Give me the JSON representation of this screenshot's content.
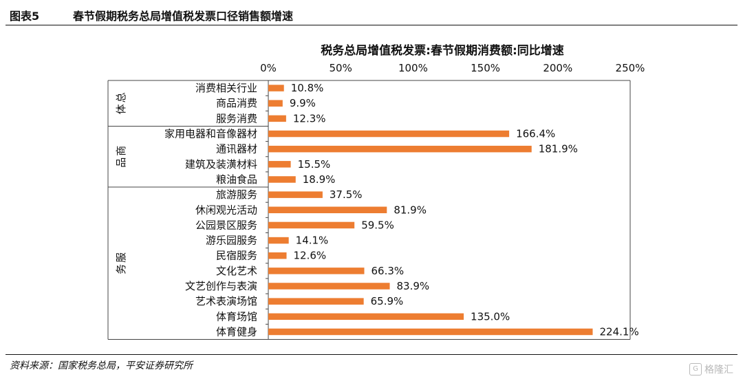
{
  "figure": {
    "number": "图表5",
    "title": "春节假期税务总局增值税发票口径销售额增速",
    "source": "资料来源：国家税务总局，平安证券研究所",
    "watermark": "格隆汇",
    "watermark_icon": "G"
  },
  "chart_data": {
    "type": "bar",
    "orientation": "horizontal",
    "title": "税务总局增值税发票:春节假期消费额:同比增速",
    "xlabel": "",
    "ylabel": "",
    "xlim": [
      0,
      250
    ],
    "x_ticks": [
      "0%",
      "50%",
      "100%",
      "150%",
      "200%",
      "250%"
    ],
    "x_tick_values": [
      0,
      50,
      100,
      150,
      200,
      250
    ],
    "bar_color": "#ED7D31",
    "grid": false,
    "legend": "none",
    "groups": [
      {
        "name": "总体",
        "items": [
          {
            "label": "消费相关行业",
            "value": 10.8,
            "value_label": "10.8%"
          },
          {
            "label": "商品消费",
            "value": 9.9,
            "value_label": "9.9%"
          },
          {
            "label": "服务消费",
            "value": 12.3,
            "value_label": "12.3%"
          }
        ]
      },
      {
        "name": "商品",
        "items": [
          {
            "label": "家用电器和音像器材",
            "value": 166.4,
            "value_label": "166.4%"
          },
          {
            "label": "通讯器材",
            "value": 181.9,
            "value_label": "181.9%"
          },
          {
            "label": "建筑及装潢材料",
            "value": 15.5,
            "value_label": "15.5%"
          },
          {
            "label": "粮油食品",
            "value": 18.9,
            "value_label": "18.9%"
          }
        ]
      },
      {
        "name": "服务",
        "items": [
          {
            "label": "旅游服务",
            "value": 37.5,
            "value_label": "37.5%"
          },
          {
            "label": "休闲观光活动",
            "value": 81.9,
            "value_label": "81.9%"
          },
          {
            "label": "公园景区服务",
            "value": 59.5,
            "value_label": "59.5%"
          },
          {
            "label": "游乐园服务",
            "value": 14.1,
            "value_label": "14.1%"
          },
          {
            "label": "民宿服务",
            "value": 12.6,
            "value_label": "12.6%"
          },
          {
            "label": "文化艺术",
            "value": 66.3,
            "value_label": "66.3%"
          },
          {
            "label": "文艺创作与表演",
            "value": 83.9,
            "value_label": "83.9%"
          },
          {
            "label": "艺术表演场馆",
            "value": 65.9,
            "value_label": "65.9%"
          },
          {
            "label": "体育场馆",
            "value": 135.0,
            "value_label": "135.0%"
          },
          {
            "label": "体育健身",
            "value": 224.1,
            "value_label": "224.1%"
          }
        ]
      }
    ]
  }
}
